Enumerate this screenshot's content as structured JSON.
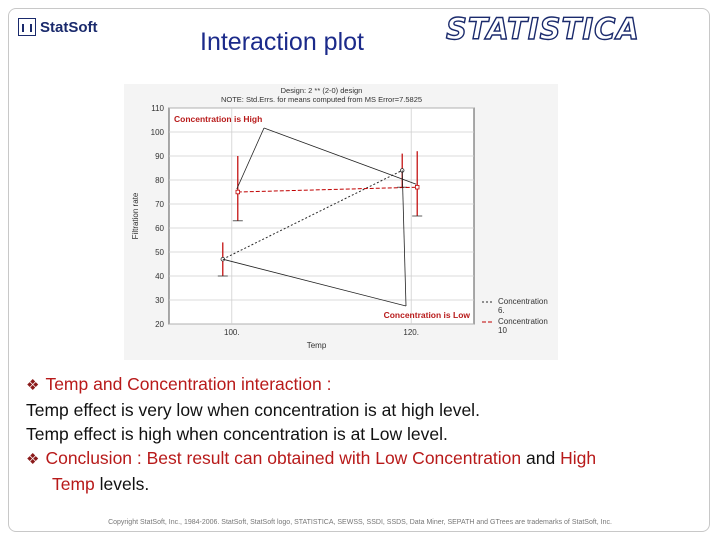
{
  "header": {
    "logo_text": "StatSoft",
    "title": "Interaction plot",
    "brand": "STATISTICA"
  },
  "colors": {
    "title": "#1b2a8a",
    "accent": "#b81a1a",
    "series_solid": "#2a2a2a",
    "series_dashed": "#c00000"
  },
  "chart_data": {
    "type": "line",
    "title": "Design: 2 ** (2-0) design",
    "subtitle": "NOTE: Std.Errs. for means computed from MS Error=7.5825",
    "xlabel": "Temp",
    "ylabel": "Filtration rate",
    "categories": [
      "100.",
      "120."
    ],
    "x": [
      100,
      120
    ],
    "xlim": [
      93,
      127
    ],
    "ylim": [
      20,
      110
    ],
    "yticks": [
      20,
      30,
      40,
      50,
      60,
      70,
      80,
      90,
      100,
      110
    ],
    "grid": true,
    "legend_position": "bottom-right",
    "series": [
      {
        "name": "Concentration 6.",
        "style": "dashed-circle",
        "values": [
          47,
          84
        ],
        "err_low": [
          40,
          77
        ],
        "err_high": [
          54,
          91
        ]
      },
      {
        "name": "Concentration 10",
        "style": "dashed-square",
        "values": [
          75,
          77
        ],
        "err_low": [
          63,
          65
        ],
        "err_high": [
          90,
          92
        ]
      }
    ],
    "annotations": [
      {
        "text": "Concentration is High",
        "position": "top-left",
        "color": "#b81a1a"
      },
      {
        "text": "Concentration is Low",
        "position": "bottom-right",
        "color": "#b81a1a"
      }
    ]
  },
  "body": {
    "line1_main": "Temp and Concentration interaction :",
    "line2": "Temp effect is very low when concentration is at high level.",
    "line3": "Temp effect is high when concentration is at Low level.",
    "line4_a": "Conclusion : Best result can obtained with ",
    "line4_b": "Low Concentration",
    "line4_c": " and ",
    "line4_d": "High",
    "line5_a": "Temp",
    "line5_b": " levels."
  },
  "footer": {
    "text": "Copyright StatSoft, Inc., 1984-2006. StatSoft, StatSoft logo, STATISTICA, SEWSS, SSDI, SSDS, Data Miner, SEPATH and GTrees are trademarks of StatSoft, Inc."
  }
}
